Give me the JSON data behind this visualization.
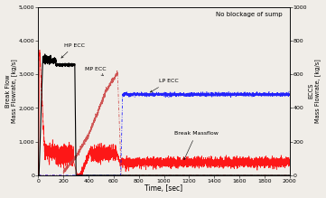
{
  "title": "No blockage of sump",
  "xlabel": "Time, [sec]",
  "ylabel_left": "Break Flow\nMass Flowrate, [kg/s]",
  "ylabel_right": "ECCS\nMass Flowrate, [kg/s]",
  "xlim": [
    0,
    2000
  ],
  "ylim_left": [
    0,
    5000
  ],
  "ylim_right": [
    0,
    1000
  ],
  "yticks_left": [
    0,
    1000,
    2000,
    3000,
    4000,
    5000
  ],
  "yticks_right": [
    0,
    200,
    400,
    600,
    800,
    1000
  ],
  "xticks": [
    0,
    200,
    400,
    600,
    800,
    1000,
    1200,
    1400,
    1600,
    1800,
    2000
  ],
  "background_color": "#f0ede8"
}
